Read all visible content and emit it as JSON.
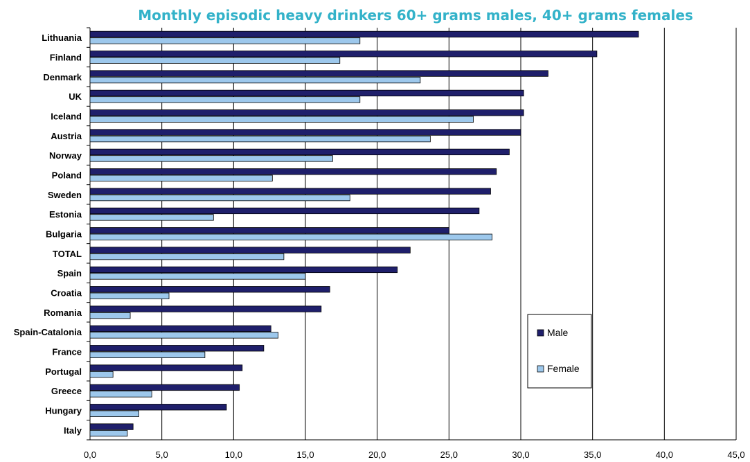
{
  "chart_data": {
    "type": "bar",
    "orientation": "horizontal",
    "title": "Monthly episodic heavy drinkers 60+ grams males, 40+ grams females",
    "xlabel": "",
    "ylabel": "",
    "xlim": [
      0,
      45
    ],
    "x_ticks": [
      "0,0",
      "5,0",
      "10,0",
      "15,0",
      "20,0",
      "25,0",
      "30,0",
      "35,0",
      "40,0",
      "45,0"
    ],
    "grid": "vertical",
    "legend_position": "right",
    "categories": [
      "Lithuania",
      "Finland",
      "Denmark",
      "UK",
      "Iceland",
      "Austria",
      "Norway",
      "Poland",
      "Sweden",
      "Estonia",
      "Bulgaria",
      "TOTAL",
      "Spain",
      "Croatia",
      "Romania",
      "Spain-Catalonia",
      "France",
      "Portugal",
      "Greece",
      "Hungary",
      "Italy"
    ],
    "series": [
      {
        "name": "Male",
        "color": "#1f1f6b",
        "values": [
          38.2,
          35.3,
          31.9,
          30.2,
          30.2,
          30.0,
          29.2,
          28.3,
          27.9,
          27.1,
          25.0,
          22.3,
          21.4,
          16.7,
          16.1,
          12.6,
          12.1,
          10.6,
          10.4,
          9.5,
          3.0
        ]
      },
      {
        "name": "Female",
        "color": "#9dc8ec",
        "values": [
          18.8,
          17.4,
          23.0,
          18.8,
          26.7,
          23.7,
          16.9,
          12.7,
          18.1,
          8.6,
          28.0,
          13.5,
          15.0,
          5.5,
          2.8,
          13.1,
          8.0,
          1.6,
          4.3,
          3.4,
          2.6
        ]
      }
    ]
  }
}
